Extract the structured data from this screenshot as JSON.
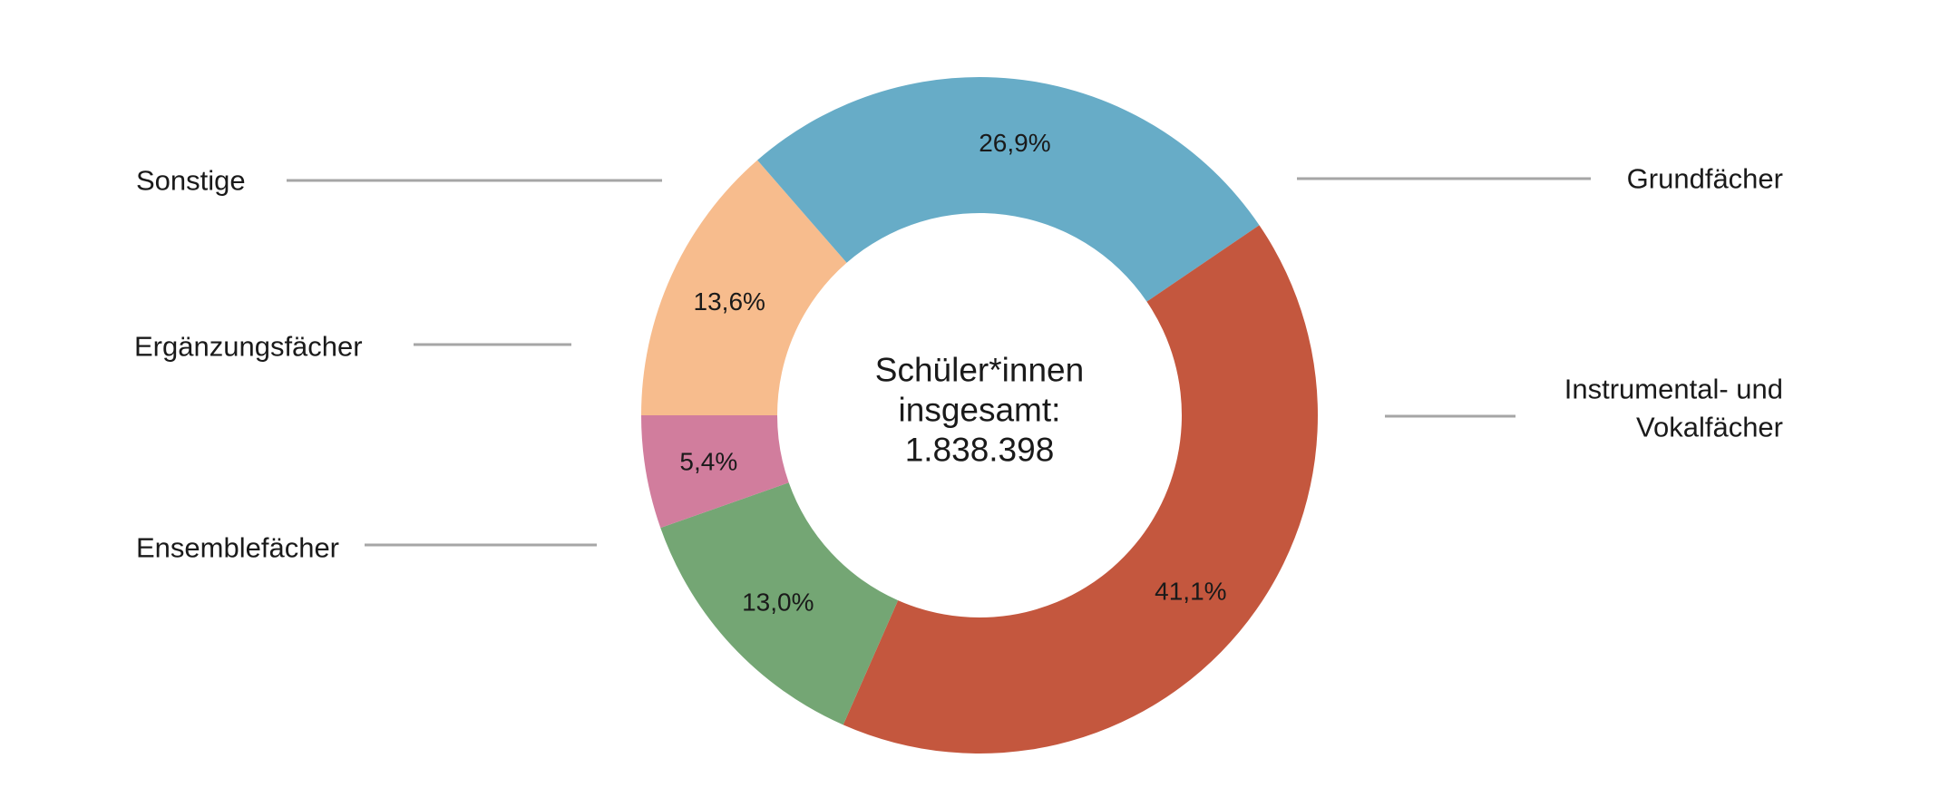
{
  "chart_data": {
    "type": "pie",
    "variant": "donut",
    "start_direction": "left (9 o'clock)",
    "order": "clockwise",
    "center_label_lines": [
      "Schüler*innen",
      "insgesamt:",
      "1.838.398"
    ],
    "slices": [
      {
        "category": "Sonstige",
        "label_lines": [
          "Sonstige"
        ],
        "value": 13.6,
        "value_label": "13,6%",
        "color": "#F7BC8D",
        "label_side": "left"
      },
      {
        "category": "Grundfächer",
        "label_lines": [
          "Grundfächer"
        ],
        "value": 26.9,
        "value_label": "26,9%",
        "color": "#67ACC7",
        "label_side": "right"
      },
      {
        "category": "Instrumental- und Vokalfächer",
        "label_lines": [
          "Instrumental- und",
          "Vokalfächer"
        ],
        "value": 41.1,
        "value_label": "41,1%",
        "color": "#C4573E",
        "label_side": "right"
      },
      {
        "category": "Ensemblefächer",
        "label_lines": [
          "Ensemblefächer"
        ],
        "value": 13.0,
        "value_label": "13,0%",
        "color": "#74A674",
        "label_side": "left"
      },
      {
        "category": "Ergänzungsfächer",
        "label_lines": [
          "Ergänzungsfächer"
        ],
        "value": 5.4,
        "value_label": "5,4%",
        "color": "#D17D9D",
        "label_side": "left"
      }
    ]
  }
}
